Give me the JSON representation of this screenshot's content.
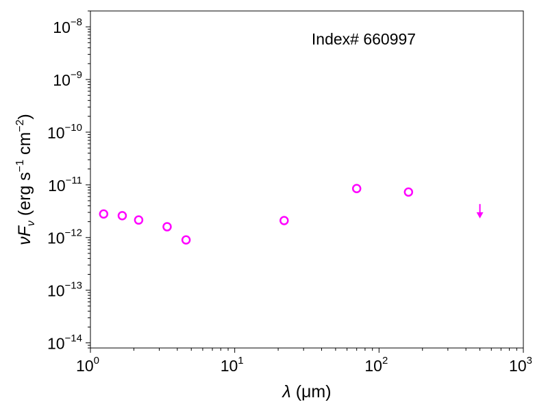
{
  "chart_data": {
    "type": "scatter",
    "title": "",
    "xscale": "log",
    "yscale": "log",
    "xlim": [
      1,
      1000
    ],
    "ylim": [
      8e-15,
      2e-08
    ],
    "grid": false,
    "marker_color": "#ff00ff",
    "annotation": "Index# 660997",
    "xlabel": {
      "symbol": "λ",
      "unit": "(μm)"
    },
    "ylabel": {
      "symbol": "νF",
      "subscript": "ν",
      "unit_open": "(erg s",
      "exp1": "−1",
      "unit_mid": " cm",
      "exp2": "−2",
      "unit_close": ")"
    },
    "x_ticks": [
      {
        "value": 1,
        "base": "10",
        "exp": "0"
      },
      {
        "value": 10,
        "base": "10",
        "exp": "1"
      },
      {
        "value": 100,
        "base": "10",
        "exp": "2"
      },
      {
        "value": 1000,
        "base": "10",
        "exp": "3"
      }
    ],
    "y_ticks": [
      {
        "value": 1e-14,
        "base": "10",
        "exp": "−14"
      },
      {
        "value": 1e-13,
        "base": "10",
        "exp": "−13"
      },
      {
        "value": 1e-12,
        "base": "10",
        "exp": "−12"
      },
      {
        "value": 1e-11,
        "base": "10",
        "exp": "−11"
      },
      {
        "value": 1e-10,
        "base": "10",
        "exp": "−10"
      },
      {
        "value": 1e-09,
        "base": "10",
        "exp": "−9"
      },
      {
        "value": 1e-08,
        "base": "10",
        "exp": "−8"
      }
    ],
    "points": [
      {
        "x": 1.235,
        "y": 2.8e-12
      },
      {
        "x": 1.662,
        "y": 2.6e-12
      },
      {
        "x": 2.159,
        "y": 2.15e-12
      },
      {
        "x": 3.4,
        "y": 1.6e-12
      },
      {
        "x": 4.6,
        "y": 9e-13
      },
      {
        "x": 22,
        "y": 2.1e-12
      },
      {
        "x": 70,
        "y": 8.5e-12
      },
      {
        "x": 160,
        "y": 7.3e-12
      }
    ],
    "upper_limits": [
      {
        "x": 500,
        "y": 2.6e-12
      }
    ]
  }
}
